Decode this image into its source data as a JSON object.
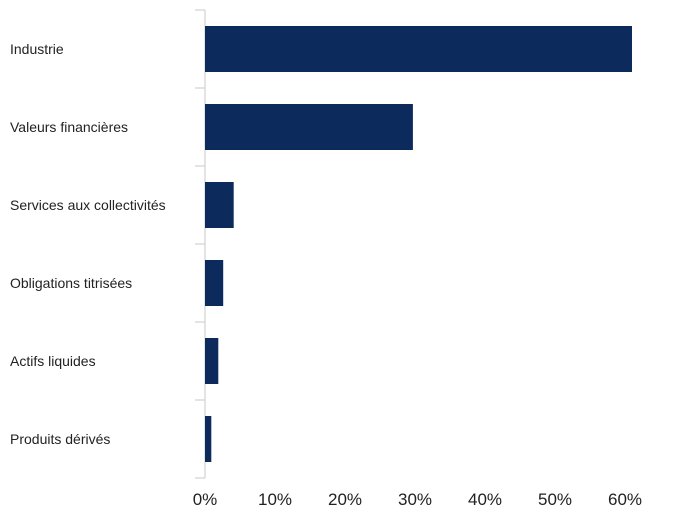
{
  "chart_data": {
    "type": "bar",
    "orientation": "horizontal",
    "title": "",
    "xlabel": "",
    "ylabel": "",
    "categories": [
      "Industrie",
      "Valeurs financières",
      "Services aux collectivités",
      "Obligations titrisées",
      "Actifs liquides",
      "Produits dérivés"
    ],
    "values": [
      61.0,
      29.7,
      4.1,
      2.6,
      1.9,
      0.9
    ],
    "xlim": [
      0,
      70
    ],
    "x_ticks": [
      "0%",
      "10%",
      "20%",
      "30%",
      "40%",
      "50%",
      "60%"
    ],
    "grid": false,
    "legend": "none",
    "bar_color": "#0d2a5c"
  }
}
